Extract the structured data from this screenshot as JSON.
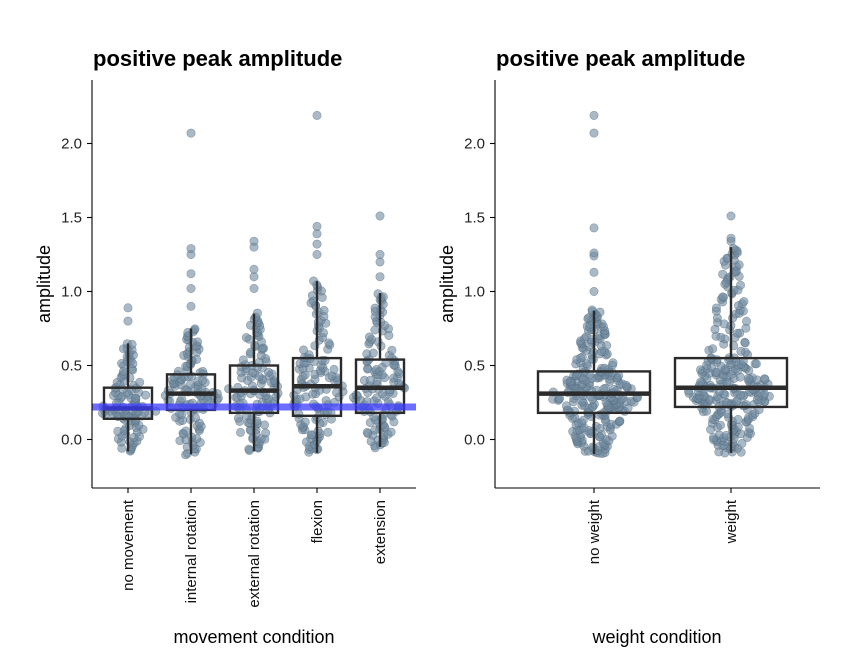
{
  "chart_data": [
    {
      "type": "boxplot",
      "title": "positive peak amplitude",
      "xlabel": "movement condition",
      "ylabel": "amplitude",
      "ylim": [
        -0.32,
        2.42
      ],
      "yticks": [
        "0.0",
        "0.5",
        "1.0",
        "1.5",
        "2.0"
      ],
      "categories": [
        "no movement",
        "internal rotation",
        "external rotation",
        "flexion",
        "extension"
      ],
      "reference_line": {
        "y": 0.22,
        "color": "#3b3bff"
      },
      "points_color": "#6f8aa0",
      "boxes": [
        {
          "q1": 0.14,
          "median": 0.21,
          "q3": 0.35,
          "low": -0.08,
          "high": 0.65,
          "n": 110,
          "outliers": [
            0.8,
            0.89
          ]
        },
        {
          "q1": 0.2,
          "median": 0.31,
          "q3": 0.44,
          "low": -0.1,
          "high": 0.75,
          "n": 120,
          "outliers": [
            0.9,
            1.02,
            1.12,
            1.25,
            1.29,
            2.07
          ]
        },
        {
          "q1": 0.18,
          "median": 0.33,
          "q3": 0.5,
          "low": -0.08,
          "high": 0.85,
          "n": 120,
          "outliers": [
            1.02,
            1.1,
            1.15,
            1.3,
            1.34
          ]
        },
        {
          "q1": 0.16,
          "median": 0.36,
          "q3": 0.55,
          "low": -0.09,
          "high": 1.07,
          "n": 125,
          "outliers": [
            1.25,
            1.32,
            1.39,
            1.44,
            2.19
          ]
        },
        {
          "q1": 0.18,
          "median": 0.35,
          "q3": 0.54,
          "low": -0.05,
          "high": 0.99,
          "n": 125,
          "outliers": [
            1.1,
            1.2,
            1.25,
            1.51
          ]
        }
      ]
    },
    {
      "type": "boxplot",
      "title": "positive peak amplitude",
      "xlabel": "weight condition",
      "ylabel": "amplitude",
      "ylim": [
        -0.32,
        2.42
      ],
      "yticks": [
        "0.0",
        "0.5",
        "1.0",
        "1.5",
        "2.0"
      ],
      "categories": [
        "no weight",
        "weight"
      ],
      "points_color": "#6f8aa0",
      "boxes": [
        {
          "q1": 0.18,
          "median": 0.31,
          "q3": 0.46,
          "low": -0.1,
          "high": 0.87,
          "n": 270,
          "outliers": [
            1.0,
            1.13,
            1.24,
            1.26,
            1.43,
            2.07,
            2.19
          ]
        },
        {
          "q1": 0.22,
          "median": 0.35,
          "q3": 0.55,
          "low": -0.09,
          "high": 1.3,
          "n": 270,
          "outliers": [
            1.34,
            1.36,
            1.51
          ]
        }
      ]
    }
  ]
}
